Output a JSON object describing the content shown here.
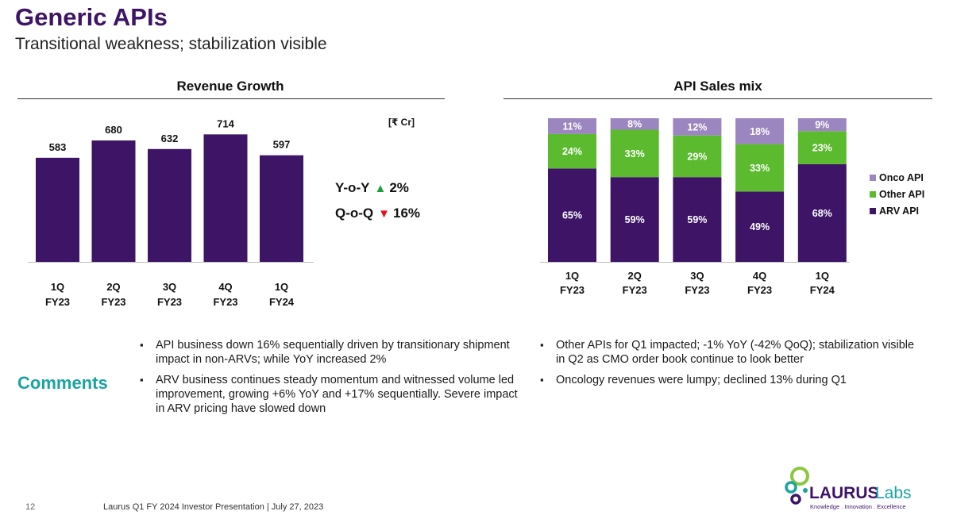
{
  "header": {
    "title": "Generic APIs",
    "subtitle": "Transitional weakness; stabilization visible"
  },
  "revenue_chart": {
    "title": "Revenue Growth",
    "unit": "[₹ Cr]",
    "yoy_label": "Y-o-Y",
    "yoy_value": "2%",
    "yoy_direction": "up",
    "qoq_label": "Q-o-Q",
    "qoq_value": "16%",
    "qoq_direction": "down"
  },
  "mix_chart": {
    "title": "API Sales mix"
  },
  "chart_data": [
    {
      "type": "bar",
      "title": "Revenue Growth",
      "categories": [
        "1Q FY23",
        "2Q FY23",
        "3Q FY23",
        "4Q FY23",
        "1Q FY24"
      ],
      "values": [
        583,
        680,
        632,
        714,
        597
      ],
      "data_labels": [
        "583",
        "680",
        "632",
        "714",
        "597"
      ],
      "unit": "[₹ Cr]",
      "color": "#3d1466",
      "ylim": [
        0,
        800
      ],
      "grid": false
    },
    {
      "type": "bar",
      "stacked": true,
      "title": "API Sales mix",
      "categories": [
        "1Q FY23",
        "2Q FY23",
        "3Q FY23",
        "4Q FY23",
        "1Q FY24"
      ],
      "series": [
        {
          "name": "ARV API",
          "color": "#3d1466",
          "values": [
            65,
            59,
            59,
            49,
            68
          ]
        },
        {
          "name": "Other API",
          "color": "#5cba2e",
          "values": [
            24,
            33,
            29,
            33,
            23
          ]
        },
        {
          "name": "Onco API",
          "color": "#9c86c0",
          "values": [
            11,
            8,
            12,
            18,
            9
          ]
        }
      ],
      "value_format": "percent",
      "ylim": [
        0,
        100
      ],
      "legend": "right",
      "grid": false
    }
  ],
  "comments": {
    "label": "Comments",
    "left": [
      "API business down 16% sequentially driven by transitionary shipment impact in non-ARVs; while YoY increased 2%",
      "ARV business continues steady momentum and witnessed volume led improvement, growing +6% YoY and +17% sequentially. Severe impact in ARV pricing have slowed down"
    ],
    "right": [
      "Other APIs for Q1 impacted; -1% YoY (-42% QoQ); stabilization visible in Q2 as CMO order book continue to look better",
      "Oncology revenues were lumpy; declined 13% during Q1"
    ]
  },
  "footer": {
    "page_number": "12",
    "text": "Laurus Q1 FY 2024 Investor Presentation | July 27, 2023"
  },
  "logo": {
    "brand_bold": "LAURUS",
    "brand_light": "Labs",
    "tagline": "Knowledge . Innovation . Excellence"
  },
  "colors": {
    "title": "#3d1466",
    "comments": "#1aa3a3",
    "up": "#1e9e3a",
    "down": "#e0141e"
  }
}
